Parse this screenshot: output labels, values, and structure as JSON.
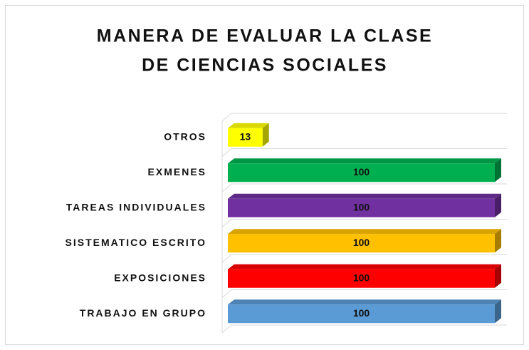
{
  "chart_data": {
    "type": "bar3d_horizontal",
    "title": [
      "MANERA DE EVALUAR  LA CLASE",
      "DE CIENCIAS SOCIALES"
    ],
    "categories": [
      "OTROS",
      "EXMENES",
      "TAREAS INDIVIDUALES",
      "SISTEMATICO ESCRITO",
      "EXPOSICIONES",
      "TRABAJO EN GRUPO"
    ],
    "values": [
      13,
      100,
      100,
      100,
      100,
      100
    ],
    "colors": [
      "#ffff00",
      "#00b050",
      "#7030a0",
      "#ffc000",
      "#ff0000",
      "#5b9bd5"
    ],
    "xlim": [
      0,
      100
    ]
  }
}
